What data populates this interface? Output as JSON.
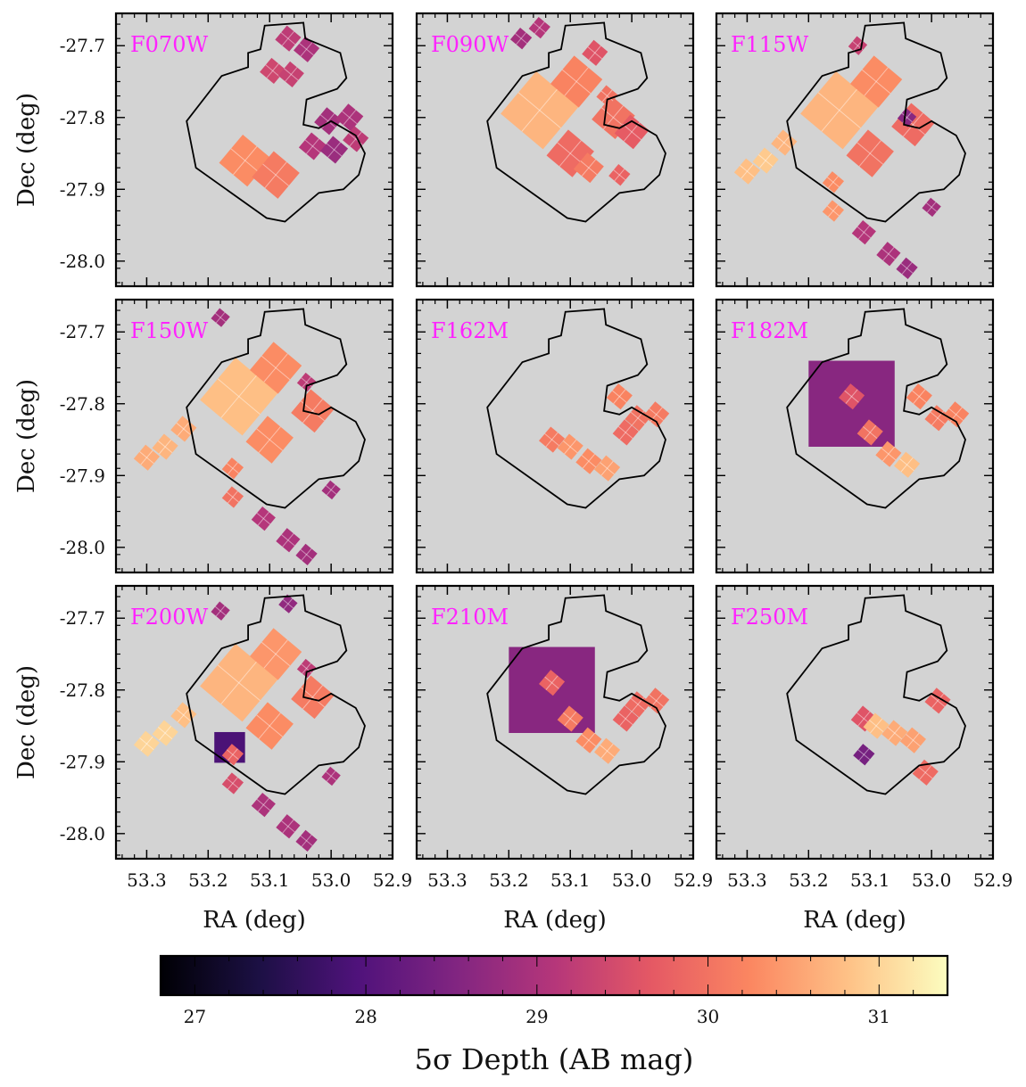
{
  "chart_data": {
    "type": "heatmap",
    "grid": {
      "rows": 3,
      "cols": 3
    },
    "xlabel": "RA (deg)",
    "ylabel": "Dec (deg)",
    "xlim": [
      53.35,
      52.9
    ],
    "ylim": [
      -28.035,
      -27.655
    ],
    "x_ticks": [
      53.3,
      53.2,
      53.1,
      53.0,
      52.9
    ],
    "x_tick_labels": [
      "53.3",
      "53.2",
      "53.1",
      "53.0",
      "52.9"
    ],
    "y_ticks": [
      -27.7,
      -27.8,
      -27.9,
      -28.0
    ],
    "y_tick_labels": [
      "-27.7",
      "-27.8",
      "-27.9",
      "-28.0"
    ],
    "background_color": "#d3d3d3",
    "label_color": "#ff22ff",
    "colorbar": {
      "title": "5σ Depth (AB mag)",
      "range": [
        26.8,
        31.4
      ],
      "ticks": [
        27,
        28,
        29,
        30,
        31
      ],
      "tick_labels": [
        "27",
        "28",
        "29",
        "30",
        "31"
      ],
      "colormap": "magma",
      "stops": [
        "#000004",
        "#1c1044",
        "#4f127b",
        "#812581",
        "#b5367a",
        "#e55964",
        "#fb8761",
        "#fec287",
        "#fcfdbf"
      ]
    },
    "survey_outline": [
      [
        53.235,
        -27.805
      ],
      [
        53.178,
        -27.742
      ],
      [
        53.135,
        -27.73
      ],
      [
        53.135,
        -27.71
      ],
      [
        53.115,
        -27.705
      ],
      [
        53.108,
        -27.672
      ],
      [
        53.045,
        -27.668
      ],
      [
        53.042,
        -27.69
      ],
      [
        52.985,
        -27.71
      ],
      [
        52.975,
        -27.745
      ],
      [
        52.99,
        -27.76
      ],
      [
        53.04,
        -27.775
      ],
      [
        53.045,
        -27.81
      ],
      [
        53.02,
        -27.815
      ],
      [
        53.0,
        -27.805
      ],
      [
        52.96,
        -27.825
      ],
      [
        52.945,
        -27.85
      ],
      [
        52.955,
        -27.88
      ],
      [
        52.98,
        -27.9
      ],
      [
        53.02,
        -27.905
      ],
      [
        53.075,
        -27.945
      ],
      [
        53.105,
        -27.94
      ],
      [
        53.22,
        -27.87
      ]
    ],
    "panels": [
      {
        "filter": "F070W",
        "tiles": [
          {
            "ra": 53.07,
            "dec": -27.69,
            "size": 0.03,
            "depth": 29.2
          },
          {
            "ra": 53.04,
            "dec": -27.705,
            "size": 0.03,
            "depth": 29.0
          },
          {
            "ra": 53.095,
            "dec": -27.735,
            "size": 0.03,
            "depth": 29.4
          },
          {
            "ra": 53.065,
            "dec": -27.74,
            "size": 0.03,
            "depth": 29.3
          },
          {
            "ra": 53.005,
            "dec": -27.805,
            "size": 0.032,
            "depth": 28.9
          },
          {
            "ra": 52.97,
            "dec": -27.8,
            "size": 0.032,
            "depth": 29.0
          },
          {
            "ra": 53.03,
            "dec": -27.84,
            "size": 0.032,
            "depth": 29.1
          },
          {
            "ra": 52.995,
            "dec": -27.845,
            "size": 0.032,
            "depth": 28.8
          },
          {
            "ra": 52.96,
            "dec": -27.83,
            "size": 0.03,
            "depth": 29.2
          },
          {
            "ra": 53.14,
            "dec": -27.86,
            "size": 0.06,
            "depth": 30.3
          },
          {
            "ra": 53.09,
            "dec": -27.88,
            "size": 0.055,
            "depth": 30.1
          }
        ]
      },
      {
        "filter": "F090W",
        "tiles": [
          {
            "ra": 53.15,
            "dec": -27.79,
            "size": 0.09,
            "depth": 30.7
          },
          {
            "ra": 53.09,
            "dec": -27.75,
            "size": 0.06,
            "depth": 30.2
          },
          {
            "ra": 53.03,
            "dec": -27.8,
            "size": 0.05,
            "depth": 30.0
          },
          {
            "ra": 53.1,
            "dec": -27.85,
            "size": 0.055,
            "depth": 29.9
          },
          {
            "ra": 53.06,
            "dec": -27.71,
            "size": 0.03,
            "depth": 29.6
          },
          {
            "ra": 53.0,
            "dec": -27.82,
            "size": 0.04,
            "depth": 29.7
          },
          {
            "ra": 53.07,
            "dec": -27.87,
            "size": 0.035,
            "depth": 30.1
          },
          {
            "ra": 53.02,
            "dec": -27.88,
            "size": 0.025,
            "depth": 29.8
          },
          {
            "ra": 53.04,
            "dec": -27.77,
            "size": 0.025,
            "depth": 30.0
          },
          {
            "ra": 53.15,
            "dec": -27.675,
            "size": 0.025,
            "depth": 29.1
          },
          {
            "ra": 53.18,
            "dec": -27.69,
            "size": 0.025,
            "depth": 28.9
          }
        ]
      },
      {
        "filter": "F115W",
        "tiles": [
          {
            "ra": 53.15,
            "dec": -27.79,
            "size": 0.09,
            "depth": 30.7
          },
          {
            "ra": 53.09,
            "dec": -27.75,
            "size": 0.06,
            "depth": 30.3
          },
          {
            "ra": 53.03,
            "dec": -27.81,
            "size": 0.05,
            "depth": 29.9
          },
          {
            "ra": 53.1,
            "dec": -27.85,
            "size": 0.055,
            "depth": 30.0
          },
          {
            "ra": 53.27,
            "dec": -27.86,
            "size": 0.03,
            "depth": 30.9
          },
          {
            "ra": 53.24,
            "dec": -27.835,
            "size": 0.03,
            "depth": 30.7
          },
          {
            "ra": 53.3,
            "dec": -27.875,
            "size": 0.03,
            "depth": 30.8
          },
          {
            "ra": 53.16,
            "dec": -27.89,
            "size": 0.025,
            "depth": 30.3
          },
          {
            "ra": 53.16,
            "dec": -27.93,
            "size": 0.025,
            "depth": 30.4
          },
          {
            "ra": 53.11,
            "dec": -27.96,
            "size": 0.028,
            "depth": 29.1
          },
          {
            "ra": 53.07,
            "dec": -27.99,
            "size": 0.028,
            "depth": 29.0
          },
          {
            "ra": 53.0,
            "dec": -27.925,
            "size": 0.022,
            "depth": 28.9
          },
          {
            "ra": 53.04,
            "dec": -28.01,
            "size": 0.025,
            "depth": 28.8
          },
          {
            "ra": 53.12,
            "dec": -27.7,
            "size": 0.022,
            "depth": 29.3
          },
          {
            "ra": 53.04,
            "dec": -27.8,
            "size": 0.022,
            "depth": 28.6
          }
        ]
      },
      {
        "filter": "F150W",
        "tiles": [
          {
            "ra": 53.15,
            "dec": -27.79,
            "size": 0.09,
            "depth": 30.8
          },
          {
            "ra": 53.09,
            "dec": -27.75,
            "size": 0.06,
            "depth": 30.3
          },
          {
            "ra": 53.03,
            "dec": -27.81,
            "size": 0.05,
            "depth": 30.1
          },
          {
            "ra": 53.1,
            "dec": -27.85,
            "size": 0.055,
            "depth": 30.3
          },
          {
            "ra": 53.27,
            "dec": -27.86,
            "size": 0.03,
            "depth": 30.7
          },
          {
            "ra": 53.24,
            "dec": -27.835,
            "size": 0.03,
            "depth": 30.6
          },
          {
            "ra": 53.3,
            "dec": -27.875,
            "size": 0.03,
            "depth": 30.6
          },
          {
            "ra": 53.16,
            "dec": -27.89,
            "size": 0.025,
            "depth": 30.2
          },
          {
            "ra": 53.16,
            "dec": -27.93,
            "size": 0.025,
            "depth": 30.0
          },
          {
            "ra": 53.11,
            "dec": -27.96,
            "size": 0.028,
            "depth": 29.1
          },
          {
            "ra": 53.07,
            "dec": -27.99,
            "size": 0.028,
            "depth": 29.0
          },
          {
            "ra": 53.0,
            "dec": -27.92,
            "size": 0.022,
            "depth": 28.9
          },
          {
            "ra": 53.04,
            "dec": -28.01,
            "size": 0.025,
            "depth": 28.9
          },
          {
            "ra": 53.18,
            "dec": -27.68,
            "size": 0.022,
            "depth": 28.9
          },
          {
            "ra": 53.04,
            "dec": -27.77,
            "size": 0.022,
            "depth": 29.2
          }
        ]
      },
      {
        "filter": "F162M",
        "tiles": [
          {
            "ra": 53.13,
            "dec": -27.85,
            "size": 0.03,
            "depth": 30.1
          },
          {
            "ra": 53.1,
            "dec": -27.86,
            "size": 0.03,
            "depth": 30.4
          },
          {
            "ra": 53.07,
            "dec": -27.88,
            "size": 0.03,
            "depth": 30.3
          },
          {
            "ra": 53.04,
            "dec": -27.89,
            "size": 0.03,
            "depth": 30.5
          },
          {
            "ra": 53.02,
            "dec": -27.79,
            "size": 0.03,
            "depth": 30.2
          },
          {
            "ra": 52.99,
            "dec": -27.82,
            "size": 0.03,
            "depth": 30.0
          },
          {
            "ra": 52.96,
            "dec": -27.815,
            "size": 0.03,
            "depth": 30.1
          },
          {
            "ra": 53.01,
            "dec": -27.84,
            "size": 0.03,
            "depth": 29.9
          }
        ]
      },
      {
        "filter": "F182M",
        "tiles": [
          {
            "ra": 53.13,
            "dec": -27.8,
            "size": 0.14,
            "depth": 28.6,
            "square": true
          },
          {
            "ra": 53.13,
            "dec": -27.79,
            "size": 0.03,
            "depth": 29.6
          },
          {
            "ra": 53.1,
            "dec": -27.84,
            "size": 0.03,
            "depth": 30.0
          },
          {
            "ra": 53.07,
            "dec": -27.87,
            "size": 0.03,
            "depth": 30.4
          },
          {
            "ra": 53.04,
            "dec": -27.885,
            "size": 0.03,
            "depth": 30.8
          },
          {
            "ra": 53.02,
            "dec": -27.79,
            "size": 0.03,
            "depth": 30.2
          },
          {
            "ra": 52.99,
            "dec": -27.82,
            "size": 0.03,
            "depth": 30.1
          },
          {
            "ra": 52.96,
            "dec": -27.815,
            "size": 0.03,
            "depth": 30.2
          }
        ]
      },
      {
        "filter": "F200W",
        "tiles": [
          {
            "ra": 53.15,
            "dec": -27.79,
            "size": 0.09,
            "depth": 30.7
          },
          {
            "ra": 53.09,
            "dec": -27.75,
            "size": 0.06,
            "depth": 30.4
          },
          {
            "ra": 53.03,
            "dec": -27.81,
            "size": 0.05,
            "depth": 30.1
          },
          {
            "ra": 53.1,
            "dec": -27.85,
            "size": 0.055,
            "depth": 30.3
          },
          {
            "ra": 53.165,
            "dec": -27.88,
            "size": 0.05,
            "depth": 27.9,
            "square": true
          },
          {
            "ra": 53.27,
            "dec": -27.86,
            "size": 0.03,
            "depth": 31.0
          },
          {
            "ra": 53.24,
            "dec": -27.835,
            "size": 0.03,
            "depth": 30.8
          },
          {
            "ra": 53.3,
            "dec": -27.875,
            "size": 0.03,
            "depth": 31.0
          },
          {
            "ra": 53.16,
            "dec": -27.89,
            "size": 0.025,
            "depth": 29.8
          },
          {
            "ra": 53.16,
            "dec": -27.93,
            "size": 0.025,
            "depth": 29.5
          },
          {
            "ra": 53.11,
            "dec": -27.96,
            "size": 0.028,
            "depth": 29.0
          },
          {
            "ra": 53.07,
            "dec": -27.99,
            "size": 0.028,
            "depth": 29.0
          },
          {
            "ra": 53.0,
            "dec": -27.92,
            "size": 0.022,
            "depth": 29.0
          },
          {
            "ra": 53.04,
            "dec": -28.01,
            "size": 0.025,
            "depth": 28.9
          },
          {
            "ra": 53.07,
            "dec": -27.68,
            "size": 0.022,
            "depth": 28.7
          },
          {
            "ra": 53.18,
            "dec": -27.69,
            "size": 0.022,
            "depth": 28.9
          },
          {
            "ra": 53.04,
            "dec": -27.77,
            "size": 0.022,
            "depth": 29.2
          }
        ]
      },
      {
        "filter": "F210M",
        "tiles": [
          {
            "ra": 53.13,
            "dec": -27.8,
            "size": 0.14,
            "depth": 28.6,
            "square": true
          },
          {
            "ra": 53.13,
            "dec": -27.79,
            "size": 0.03,
            "depth": 29.8
          },
          {
            "ra": 53.1,
            "dec": -27.84,
            "size": 0.03,
            "depth": 30.1
          },
          {
            "ra": 53.07,
            "dec": -27.87,
            "size": 0.03,
            "depth": 30.3
          },
          {
            "ra": 53.04,
            "dec": -27.885,
            "size": 0.03,
            "depth": 30.6
          },
          {
            "ra": 52.99,
            "dec": -27.82,
            "size": 0.03,
            "depth": 29.9
          },
          {
            "ra": 52.96,
            "dec": -27.815,
            "size": 0.03,
            "depth": 30.0
          },
          {
            "ra": 53.01,
            "dec": -27.84,
            "size": 0.03,
            "depth": 29.8
          }
        ]
      },
      {
        "filter": "F250M",
        "tiles": [
          {
            "ra": 53.11,
            "dec": -27.84,
            "size": 0.03,
            "depth": 29.6
          },
          {
            "ra": 53.09,
            "dec": -27.85,
            "size": 0.03,
            "depth": 30.8
          },
          {
            "ra": 53.06,
            "dec": -27.86,
            "size": 0.03,
            "depth": 30.6
          },
          {
            "ra": 53.03,
            "dec": -27.87,
            "size": 0.03,
            "depth": 30.5
          },
          {
            "ra": 53.11,
            "dec": -27.89,
            "size": 0.025,
            "depth": 28.4
          },
          {
            "ra": 52.99,
            "dec": -27.815,
            "size": 0.03,
            "depth": 29.8
          },
          {
            "ra": 53.01,
            "dec": -27.915,
            "size": 0.03,
            "depth": 29.9
          }
        ]
      }
    ]
  }
}
